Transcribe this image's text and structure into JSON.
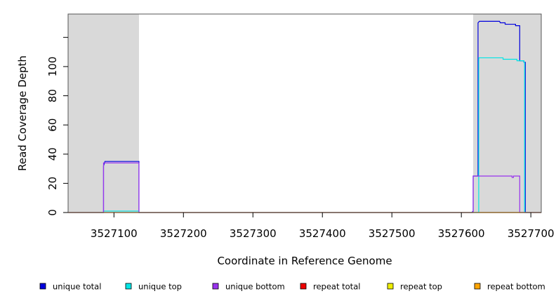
{
  "chart_data": {
    "type": "line",
    "title": "",
    "xlabel": "Coordinate in Reference Genome",
    "ylabel": "Read Coverage Depth",
    "xlim": [
      3527034,
      3527715
    ],
    "ylim": [
      0,
      136
    ],
    "x_ticks": [
      3527100,
      3527200,
      3527300,
      3527400,
      3527500,
      3527600,
      3527700
    ],
    "x_tick_labels": [
      "3527100",
      "3527200",
      "3527300",
      "3527400",
      "3527500",
      "3527600",
      "3527700"
    ],
    "y_ticks": [
      0,
      20,
      40,
      60,
      80,
      100,
      120
    ],
    "y_tick_labels": [
      "0",
      "20",
      "40",
      "60",
      "80",
      "100",
      ""
    ],
    "grid": false,
    "legend_position": "bottom",
    "shaded_regions": [
      {
        "x0": 3527034,
        "x1": 3527136,
        "color": "#d9d9d9"
      },
      {
        "x0": 3527617,
        "x1": 3527715,
        "color": "#d9d9d9"
      }
    ],
    "series": [
      {
        "name": "unique total",
        "color": "#0000dd",
        "points": [
          [
            3527034,
            0
          ],
          [
            3527085,
            0
          ],
          [
            3527085,
            32
          ],
          [
            3527087,
            35
          ],
          [
            3527136,
            35
          ],
          [
            3527136,
            0
          ],
          [
            3527615,
            0
          ],
          [
            3527617,
            1
          ],
          [
            3527617,
            25
          ],
          [
            3527624,
            25
          ],
          [
            3527624,
            130
          ],
          [
            3527626,
            131
          ],
          [
            3527655,
            131
          ],
          [
            3527656,
            130
          ],
          [
            3527663,
            130
          ],
          [
            3527663,
            129
          ],
          [
            3527678,
            129
          ],
          [
            3527678,
            128
          ],
          [
            3527684,
            128
          ],
          [
            3527684,
            104
          ],
          [
            3527690,
            104
          ],
          [
            3527690,
            103
          ],
          [
            3527692,
            103
          ],
          [
            3527692,
            0
          ],
          [
            3527715,
            0
          ]
        ]
      },
      {
        "name": "unique top",
        "color": "#00e5e5",
        "points": [
          [
            3527034,
            0
          ],
          [
            3527085,
            0
          ],
          [
            3527085,
            1
          ],
          [
            3527136,
            1
          ],
          [
            3527136,
            0
          ],
          [
            3527625,
            0
          ],
          [
            3527625,
            106
          ],
          [
            3527660,
            106
          ],
          [
            3527660,
            105
          ],
          [
            3527680,
            105
          ],
          [
            3527680,
            104
          ],
          [
            3527690,
            104
          ],
          [
            3527690,
            103
          ],
          [
            3527691,
            103
          ],
          [
            3527691,
            0
          ],
          [
            3527715,
            0
          ]
        ]
      },
      {
        "name": "unique bottom",
        "color": "#9933ee",
        "points": [
          [
            3527034,
            0
          ],
          [
            3527085,
            0
          ],
          [
            3527085,
            34
          ],
          [
            3527136,
            34
          ],
          [
            3527136,
            0
          ],
          [
            3527617,
            0
          ],
          [
            3527617,
            25
          ],
          [
            3527673,
            25
          ],
          [
            3527673,
            24
          ],
          [
            3527675,
            24
          ],
          [
            3527675,
            25
          ],
          [
            3527684,
            25
          ],
          [
            3527684,
            0
          ],
          [
            3527715,
            0
          ]
        ]
      },
      {
        "name": "repeat total",
        "color": "#ee0000",
        "points": [
          [
            3527034,
            0
          ],
          [
            3527715,
            0
          ]
        ]
      },
      {
        "name": "repeat top",
        "color": "#eeee00",
        "points": [
          [
            3527034,
            0
          ],
          [
            3527715,
            0
          ]
        ]
      },
      {
        "name": "repeat bottom",
        "color": "#ffa500",
        "points": [
          [
            3527625,
            0
          ],
          [
            3527686,
            0
          ]
        ]
      }
    ]
  }
}
